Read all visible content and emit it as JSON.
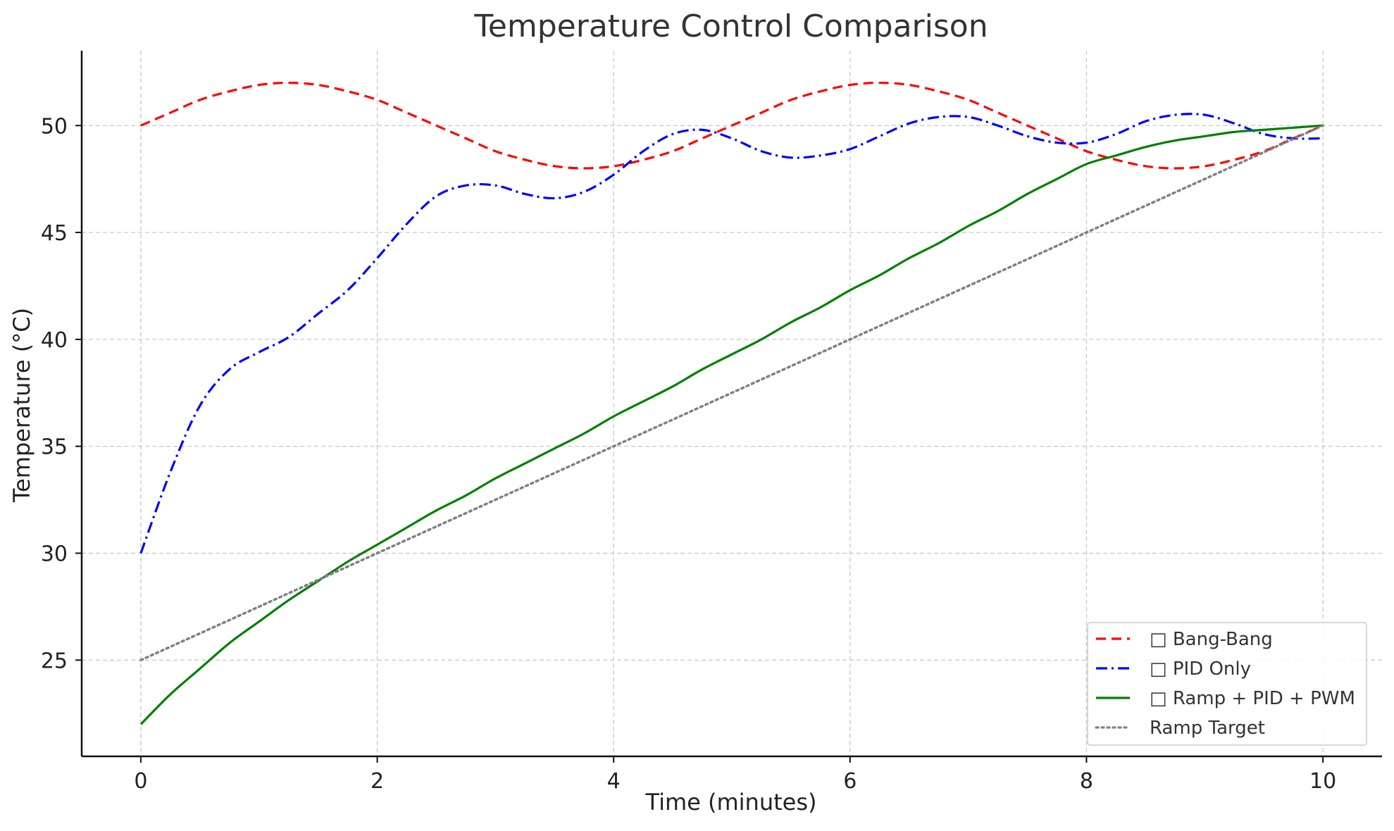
{
  "chart_data": {
    "type": "line",
    "title": "Temperature Control Comparison",
    "xlabel": "Time (minutes)",
    "ylabel": "Temperature (°C)",
    "xlim": [
      -0.5,
      10.5
    ],
    "ylim": [
      20.5,
      53.5
    ],
    "xticks": [
      0,
      2,
      4,
      6,
      8,
      10
    ],
    "yticks": [
      25,
      30,
      35,
      40,
      45,
      50
    ],
    "grid": true,
    "legend_position": "lower-right",
    "series": [
      {
        "name": "🔴 Bang-Bang",
        "legend_glyph": "□",
        "legend_text": " Bang-Bang",
        "color": "#ff0000",
        "dash": "dashed",
        "x": [
          0,
          0.25,
          0.5,
          0.75,
          1,
          1.25,
          1.5,
          1.75,
          2,
          2.25,
          2.5,
          2.75,
          3,
          3.25,
          3.5,
          3.75,
          4,
          4.25,
          4.5,
          4.75,
          5,
          5.25,
          5.5,
          5.75,
          6,
          6.25,
          6.5,
          6.75,
          7,
          7.25,
          7.5,
          7.75,
          8,
          8.25,
          8.5,
          8.75,
          9,
          9.25,
          9.5,
          9.75,
          10
        ],
        "y": [
          50.0,
          50.6,
          51.2,
          51.6,
          51.9,
          52.0,
          51.9,
          51.6,
          51.2,
          50.6,
          50.0,
          49.4,
          48.8,
          48.4,
          48.1,
          48.0,
          48.1,
          48.4,
          48.8,
          49.4,
          50.0,
          50.6,
          51.2,
          51.6,
          51.9,
          52.0,
          51.9,
          51.6,
          51.2,
          50.6,
          50.0,
          49.4,
          48.8,
          48.4,
          48.1,
          48.0,
          48.1,
          48.4,
          48.8,
          49.4,
          50.0
        ]
      },
      {
        "name": "🔵 PID Only",
        "legend_glyph": "□",
        "legend_text": " PID Only",
        "color": "#0000ff",
        "dash": "dashdot",
        "x": [
          0,
          0.25,
          0.5,
          0.75,
          1,
          1.25,
          1.5,
          1.75,
          2,
          2.25,
          2.5,
          2.75,
          3,
          3.25,
          3.5,
          3.75,
          4,
          4.25,
          4.5,
          4.75,
          5,
          5.25,
          5.5,
          5.75,
          6,
          6.25,
          6.5,
          6.75,
          7,
          7.25,
          7.5,
          7.75,
          8,
          8.25,
          8.5,
          8.75,
          9,
          9.25,
          9.5,
          9.75,
          10
        ],
        "y": [
          30.0,
          33.8,
          36.9,
          38.6,
          39.4,
          40.1,
          41.2,
          42.3,
          43.8,
          45.4,
          46.7,
          47.2,
          47.2,
          46.8,
          46.6,
          46.9,
          47.7,
          48.8,
          49.6,
          49.8,
          49.4,
          48.8,
          48.5,
          48.6,
          48.9,
          49.5,
          50.1,
          50.4,
          50.4,
          50.0,
          49.5,
          49.2,
          49.2,
          49.6,
          50.2,
          50.5,
          50.5,
          50.1,
          49.6,
          49.4,
          49.4
        ]
      },
      {
        "name": "🟢 Ramp + PID + PWM",
        "legend_glyph": "□",
        "legend_text": " Ramp + PID + PWM",
        "color": "#008000",
        "dash": "solid",
        "x": [
          0,
          0.25,
          0.5,
          0.75,
          1,
          1.25,
          1.5,
          1.75,
          2,
          2.25,
          2.5,
          2.75,
          3,
          3.25,
          3.5,
          3.75,
          4,
          4.25,
          4.5,
          4.75,
          5,
          5.25,
          5.5,
          5.75,
          6,
          6.25,
          6.5,
          6.75,
          7,
          7.25,
          7.5,
          7.75,
          8,
          8.25,
          8.5,
          8.75,
          9,
          9.25,
          9.5,
          9.75,
          10
        ],
        "y": [
          22.0,
          23.4,
          24.6,
          25.8,
          26.8,
          27.8,
          28.7,
          29.6,
          30.4,
          31.2,
          32.0,
          32.7,
          33.5,
          34.2,
          34.9,
          35.6,
          36.4,
          37.1,
          37.8,
          38.6,
          39.3,
          40.0,
          40.8,
          41.5,
          42.3,
          43.0,
          43.8,
          44.5,
          45.3,
          46.0,
          46.8,
          47.5,
          48.2,
          48.6,
          49.0,
          49.3,
          49.5,
          49.7,
          49.8,
          49.9,
          50.0
        ]
      },
      {
        "name": "Ramp Target",
        "legend_glyph": "",
        "legend_text": "Ramp Target",
        "color": "#808080",
        "dash": "dotted",
        "x": [
          0,
          10
        ],
        "y": [
          25,
          50
        ]
      }
    ]
  }
}
